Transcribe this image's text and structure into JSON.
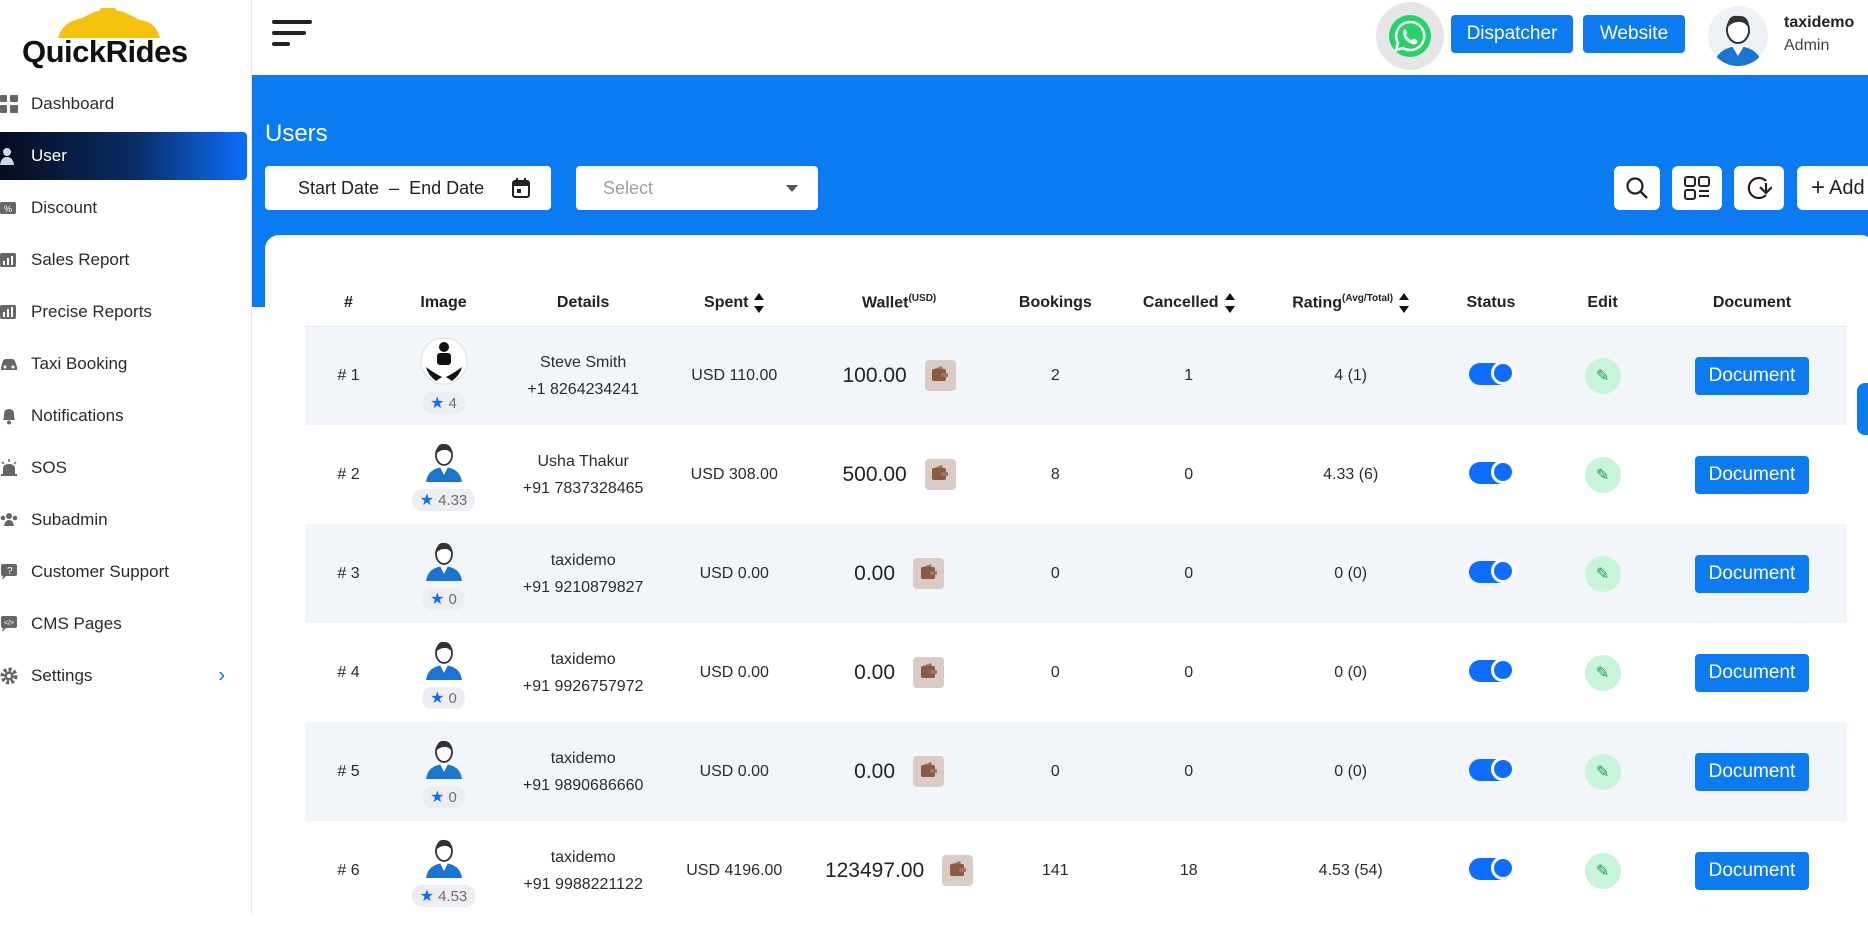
{
  "brand": {
    "logo_text": "QuickRides"
  },
  "sidebar": {
    "items": [
      {
        "label": "Dashboard",
        "icon": "dashboard-icon"
      },
      {
        "label": "User",
        "icon": "user-icon"
      },
      {
        "label": "Discount",
        "icon": "discount-icon"
      },
      {
        "label": "Sales Report",
        "icon": "sales-report-icon"
      },
      {
        "label": "Precise Reports",
        "icon": "reports-icon"
      },
      {
        "label": "Taxi Booking",
        "icon": "taxi-icon"
      },
      {
        "label": "Notifications",
        "icon": "bell-icon"
      },
      {
        "label": "SOS",
        "icon": "alarm-icon"
      },
      {
        "label": "Subadmin",
        "icon": "group-icon"
      },
      {
        "label": "Customer Support",
        "icon": "support-icon"
      },
      {
        "label": "CMS Pages",
        "icon": "code-chat-icon"
      },
      {
        "label": "Settings",
        "icon": "gear-icon"
      }
    ],
    "active_index": 1
  },
  "topbar": {
    "dispatcher_label": "Dispatcher",
    "website_label": "Website",
    "user_name": "taxidemo",
    "user_role": "Admin"
  },
  "page": {
    "title": "Users",
    "start_date_label": "Start Date",
    "date_separator": "–",
    "end_date_label": "End Date",
    "select_placeholder": "Select",
    "add_label": "Add"
  },
  "table": {
    "headers": {
      "num": "#",
      "image": "Image",
      "details": "Details",
      "spent": "Spent",
      "wallet": "Wallet",
      "wallet_sup": "(USD)",
      "bookings": "Bookings",
      "cancelled": "Cancelled",
      "rating": "Rating",
      "rating_sup": "(Avg/Total)",
      "status": "Status",
      "edit": "Edit",
      "document": "Document"
    },
    "document_button_label": "Document",
    "rows": [
      {
        "num": "# 1",
        "rating_badge": "4",
        "name": "Steve Smith",
        "phone": "+1 8264234241",
        "spent": "USD 110.00",
        "wallet": "100.00",
        "bookings": "2",
        "cancelled": "1",
        "rating": "4 (1)",
        "avatar": "custom"
      },
      {
        "num": "# 2",
        "rating_badge": "4.33",
        "name": "Usha Thakur",
        "phone": "+91 7837328465",
        "spent": "USD 308.00",
        "wallet": "500.00",
        "bookings": "8",
        "cancelled": "0",
        "rating": "4.33 (6)",
        "avatar": "default"
      },
      {
        "num": "# 3",
        "rating_badge": "0",
        "name": "taxidemo",
        "phone": "+91 9210879827",
        "spent": "USD 0.00",
        "wallet": "0.00",
        "bookings": "0",
        "cancelled": "0",
        "rating": "0 (0)",
        "avatar": "default"
      },
      {
        "num": "# 4",
        "rating_badge": "0",
        "name": "taxidemo",
        "phone": "+91 9926757972",
        "spent": "USD 0.00",
        "wallet": "0.00",
        "bookings": "0",
        "cancelled": "0",
        "rating": "0 (0)",
        "avatar": "default"
      },
      {
        "num": "# 5",
        "rating_badge": "0",
        "name": "taxidemo",
        "phone": "+91 9890686660",
        "spent": "USD 0.00",
        "wallet": "0.00",
        "bookings": "0",
        "cancelled": "0",
        "rating": "0 (0)",
        "avatar": "default"
      },
      {
        "num": "# 6",
        "rating_badge": "4.53",
        "name": "taxidemo",
        "phone": "+91 9988221122",
        "spent": "USD 4196.00",
        "wallet": "123497.00",
        "bookings": "141",
        "cancelled": "18",
        "rating": "4.53 (54)",
        "avatar": "default"
      }
    ]
  },
  "colors": {
    "primary": "#0a7bf2",
    "active_nav_dark": "#050d1f",
    "row_alt": "#f2f6fb",
    "edit_bg": "#c9f4dc",
    "wallet_btn": "#d9ccc6"
  }
}
